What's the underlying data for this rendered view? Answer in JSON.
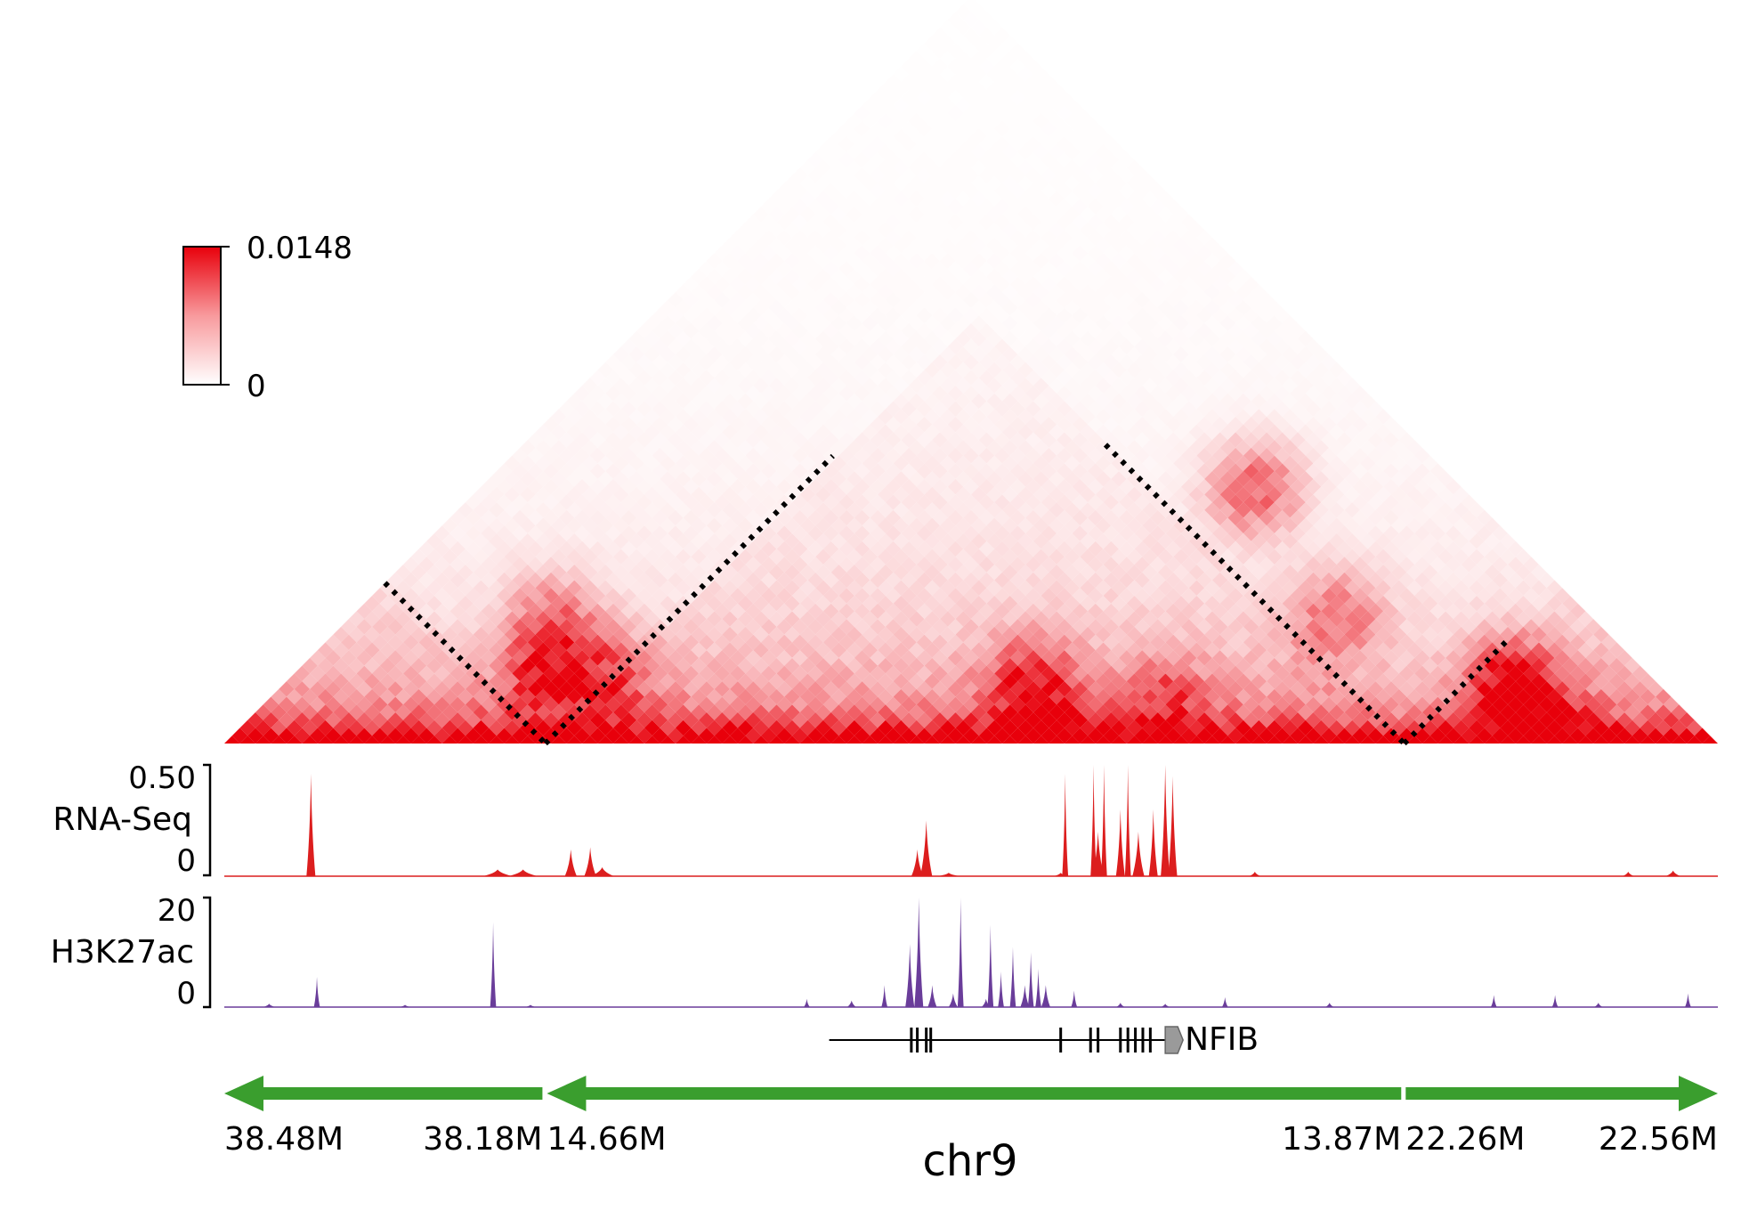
{
  "chart_data": {
    "type": "heatmap",
    "description_free": true,
    "colorbar": {
      "max_label": "0.0148",
      "min_label": "0",
      "max": 0.0148,
      "min": 0,
      "color_high": "#e8000b",
      "color_low": "#ffffff"
    },
    "heatmap": {
      "bins": 96,
      "tad_boundaries_fraction": [
        0.215,
        0.79
      ],
      "hotspots": [
        {
          "i": 0.17,
          "j": 0.26,
          "strength": 0.75
        },
        {
          "i": 0.21,
          "j": 0.3,
          "strength": 0.6
        },
        {
          "i": 0.14,
          "j": 0.3,
          "strength": 0.55
        },
        {
          "i": 0.5,
          "j": 0.58,
          "strength": 0.8
        },
        {
          "i": 0.55,
          "j": 0.55,
          "strength": 0.5
        },
        {
          "i": 0.6,
          "j": 0.66,
          "strength": 0.5
        },
        {
          "i": 0.52,
          "j": 0.86,
          "strength": 0.7
        },
        {
          "i": 0.66,
          "j": 0.83,
          "strength": 0.55
        },
        {
          "i": 0.82,
          "j": 0.9,
          "strength": 0.85
        },
        {
          "i": 0.87,
          "j": 0.9,
          "strength": 0.6
        }
      ],
      "dotted_lines": [
        {
          "from": [
            0.0,
            0.215
          ],
          "to": [
            0.215,
            0.215
          ]
        },
        {
          "from": [
            0.215,
            0.215
          ],
          "to": [
            0.215,
            0.6
          ]
        },
        {
          "from": [
            0.39,
            0.79
          ],
          "to": [
            0.79,
            0.79
          ]
        },
        {
          "from": [
            0.79,
            0.79
          ],
          "to": [
            0.79,
            0.93
          ]
        }
      ]
    },
    "tracks": [
      {
        "name": "RNA-Seq",
        "ymax_label": "0.50",
        "ymin_label": "0",
        "ymax": 0.5,
        "color": "#dc1e1e",
        "peaks": [
          {
            "x": 0.058,
            "h": 0.46,
            "w": 0.003
          },
          {
            "x": 0.183,
            "h": 0.03,
            "w": 0.01
          },
          {
            "x": 0.2,
            "h": 0.03,
            "w": 0.01
          },
          {
            "x": 0.232,
            "h": 0.12,
            "w": 0.004
          },
          {
            "x": 0.245,
            "h": 0.13,
            "w": 0.004
          },
          {
            "x": 0.253,
            "h": 0.04,
            "w": 0.008
          },
          {
            "x": 0.464,
            "h": 0.12,
            "w": 0.004
          },
          {
            "x": 0.47,
            "h": 0.25,
            "w": 0.004
          },
          {
            "x": 0.485,
            "h": 0.015,
            "w": 0.008
          },
          {
            "x": 0.56,
            "h": 0.015,
            "w": 0.005
          },
          {
            "x": 0.563,
            "h": 0.46,
            "w": 0.002
          },
          {
            "x": 0.582,
            "h": 0.5,
            "w": 0.002
          },
          {
            "x": 0.585,
            "h": 0.2,
            "w": 0.004
          },
          {
            "x": 0.589,
            "h": 0.5,
            "w": 0.002
          },
          {
            "x": 0.6,
            "h": 0.3,
            "w": 0.003
          },
          {
            "x": 0.605,
            "h": 0.5,
            "w": 0.002
          },
          {
            "x": 0.612,
            "h": 0.2,
            "w": 0.004
          },
          {
            "x": 0.622,
            "h": 0.3,
            "w": 0.003
          },
          {
            "x": 0.63,
            "h": 0.5,
            "w": 0.003
          },
          {
            "x": 0.635,
            "h": 0.45,
            "w": 0.003
          },
          {
            "x": 0.69,
            "h": 0.02,
            "w": 0.004
          },
          {
            "x": 0.94,
            "h": 0.02,
            "w": 0.004
          },
          {
            "x": 0.97,
            "h": 0.025,
            "w": 0.005
          }
        ]
      },
      {
        "name": "H3K27ac",
        "ymax_label": "20",
        "ymin_label": "0",
        "ymax": 20,
        "color": "#6a3d9a",
        "peaks": [
          {
            "x": 0.03,
            "h": 0.6,
            "w": 0.004
          },
          {
            "x": 0.062,
            "h": 5.5,
            "w": 0.002
          },
          {
            "x": 0.121,
            "h": 0.4,
            "w": 0.004
          },
          {
            "x": 0.18,
            "h": 15.5,
            "w": 0.002
          },
          {
            "x": 0.205,
            "h": 0.4,
            "w": 0.004
          },
          {
            "x": 0.39,
            "h": 1.5,
            "w": 0.002
          },
          {
            "x": 0.42,
            "h": 1.2,
            "w": 0.003
          },
          {
            "x": 0.442,
            "h": 4.0,
            "w": 0.002
          },
          {
            "x": 0.459,
            "h": 11.5,
            "w": 0.003
          },
          {
            "x": 0.465,
            "h": 20,
            "w": 0.003
          },
          {
            "x": 0.474,
            "h": 4,
            "w": 0.003
          },
          {
            "x": 0.488,
            "h": 2.5,
            "w": 0.003
          },
          {
            "x": 0.493,
            "h": 20,
            "w": 0.002
          },
          {
            "x": 0.51,
            "h": 1.5,
            "w": 0.003
          },
          {
            "x": 0.513,
            "h": 15,
            "w": 0.002
          },
          {
            "x": 0.52,
            "h": 6.5,
            "w": 0.002
          },
          {
            "x": 0.528,
            "h": 11,
            "w": 0.002
          },
          {
            "x": 0.536,
            "h": 4,
            "w": 0.003
          },
          {
            "x": 0.54,
            "h": 10,
            "w": 0.002
          },
          {
            "x": 0.545,
            "h": 7,
            "w": 0.002
          },
          {
            "x": 0.55,
            "h": 4,
            "w": 0.003
          },
          {
            "x": 0.569,
            "h": 3,
            "w": 0.002
          },
          {
            "x": 0.6,
            "h": 0.8,
            "w": 0.003
          },
          {
            "x": 0.63,
            "h": 0.6,
            "w": 0.003
          },
          {
            "x": 0.67,
            "h": 1.8,
            "w": 0.002
          },
          {
            "x": 0.74,
            "h": 0.8,
            "w": 0.003
          },
          {
            "x": 0.85,
            "h": 2.2,
            "w": 0.002
          },
          {
            "x": 0.891,
            "h": 2.2,
            "w": 0.002
          },
          {
            "x": 0.92,
            "h": 0.8,
            "w": 0.003
          },
          {
            "x": 0.98,
            "h": 2.5,
            "w": 0.002
          }
        ]
      }
    ],
    "gene": {
      "name": "NFIB",
      "start": 0.405,
      "end": 0.63,
      "exons": [
        0.46,
        0.464,
        0.47,
        0.473,
        0.56,
        0.58,
        0.585,
        0.6,
        0.605,
        0.61,
        0.615,
        0.62
      ],
      "strand_arrow": true
    },
    "segments": [
      {
        "direction": "left",
        "start": 0.0,
        "end": 0.213,
        "left_label": "38.48M",
        "right_label": "38.18M"
      },
      {
        "direction": "left",
        "start": 0.216,
        "end": 0.788,
        "left_label": "14.66M",
        "right_label": "13.87M"
      },
      {
        "direction": "right",
        "start": 0.791,
        "end": 1.0,
        "left_label": "22.26M",
        "right_label": "22.56M"
      }
    ],
    "segment_color": "#3a9e2e",
    "xlabel": "chr9"
  }
}
